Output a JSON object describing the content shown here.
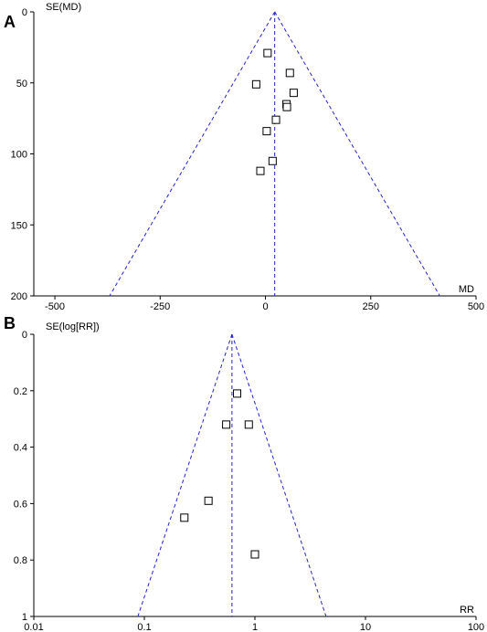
{
  "chart_data": [
    {
      "type": "scatter",
      "panel_label": "A",
      "xlabel": "MD",
      "ylabel": "SE(MD)",
      "x_scale": "linear",
      "xlim": [
        -550,
        500
      ],
      "ylim": [
        0,
        200
      ],
      "y_reversed": true,
      "x_ticks": [
        -500,
        -250,
        0,
        250,
        500
      ],
      "x_tick_labels": [
        "-500",
        "-250",
        "0",
        "250",
        "500"
      ],
      "y_ticks": [
        0,
        50,
        100,
        150,
        200
      ],
      "y_tick_labels": [
        "0",
        "50",
        "100",
        "150",
        "200"
      ],
      "funnel": {
        "center": 22,
        "se_max": 200,
        "se_min": 0
      },
      "points": [
        {
          "x": 5,
          "y": 29
        },
        {
          "x": 58,
          "y": 43
        },
        {
          "x": -22,
          "y": 51
        },
        {
          "x": 67,
          "y": 57
        },
        {
          "x": 50,
          "y": 65
        },
        {
          "x": 51,
          "y": 67
        },
        {
          "x": 25,
          "y": 76
        },
        {
          "x": 3,
          "y": 84
        },
        {
          "x": 17,
          "y": 105
        },
        {
          "x": -12,
          "y": 112
        }
      ]
    },
    {
      "type": "scatter",
      "panel_label": "B",
      "xlabel": "RR",
      "ylabel": "SE(log[RR])",
      "x_scale": "log",
      "xlim": [
        0.01,
        100
      ],
      "ylim": [
        0,
        1
      ],
      "y_reversed": true,
      "x_ticks": [
        0.01,
        0.1,
        1,
        10,
        100
      ],
      "x_tick_labels": [
        "0.01",
        "0.1",
        "1",
        "10",
        "100"
      ],
      "y_ticks": [
        0,
        0.2,
        0.4,
        0.6,
        0.8,
        1
      ],
      "y_tick_labels": [
        "0",
        "0.2",
        "0.4",
        "0.6",
        "0.8",
        "1"
      ],
      "funnel": {
        "center": 0.62,
        "se_max": 1,
        "se_min": 0
      },
      "points": [
        {
          "x": 0.69,
          "y": 0.21
        },
        {
          "x": 0.55,
          "y": 0.32
        },
        {
          "x": 0.88,
          "y": 0.32
        },
        {
          "x": 0.38,
          "y": 0.59
        },
        {
          "x": 0.23,
          "y": 0.65
        },
        {
          "x": 1.0,
          "y": 0.78
        }
      ]
    }
  ]
}
